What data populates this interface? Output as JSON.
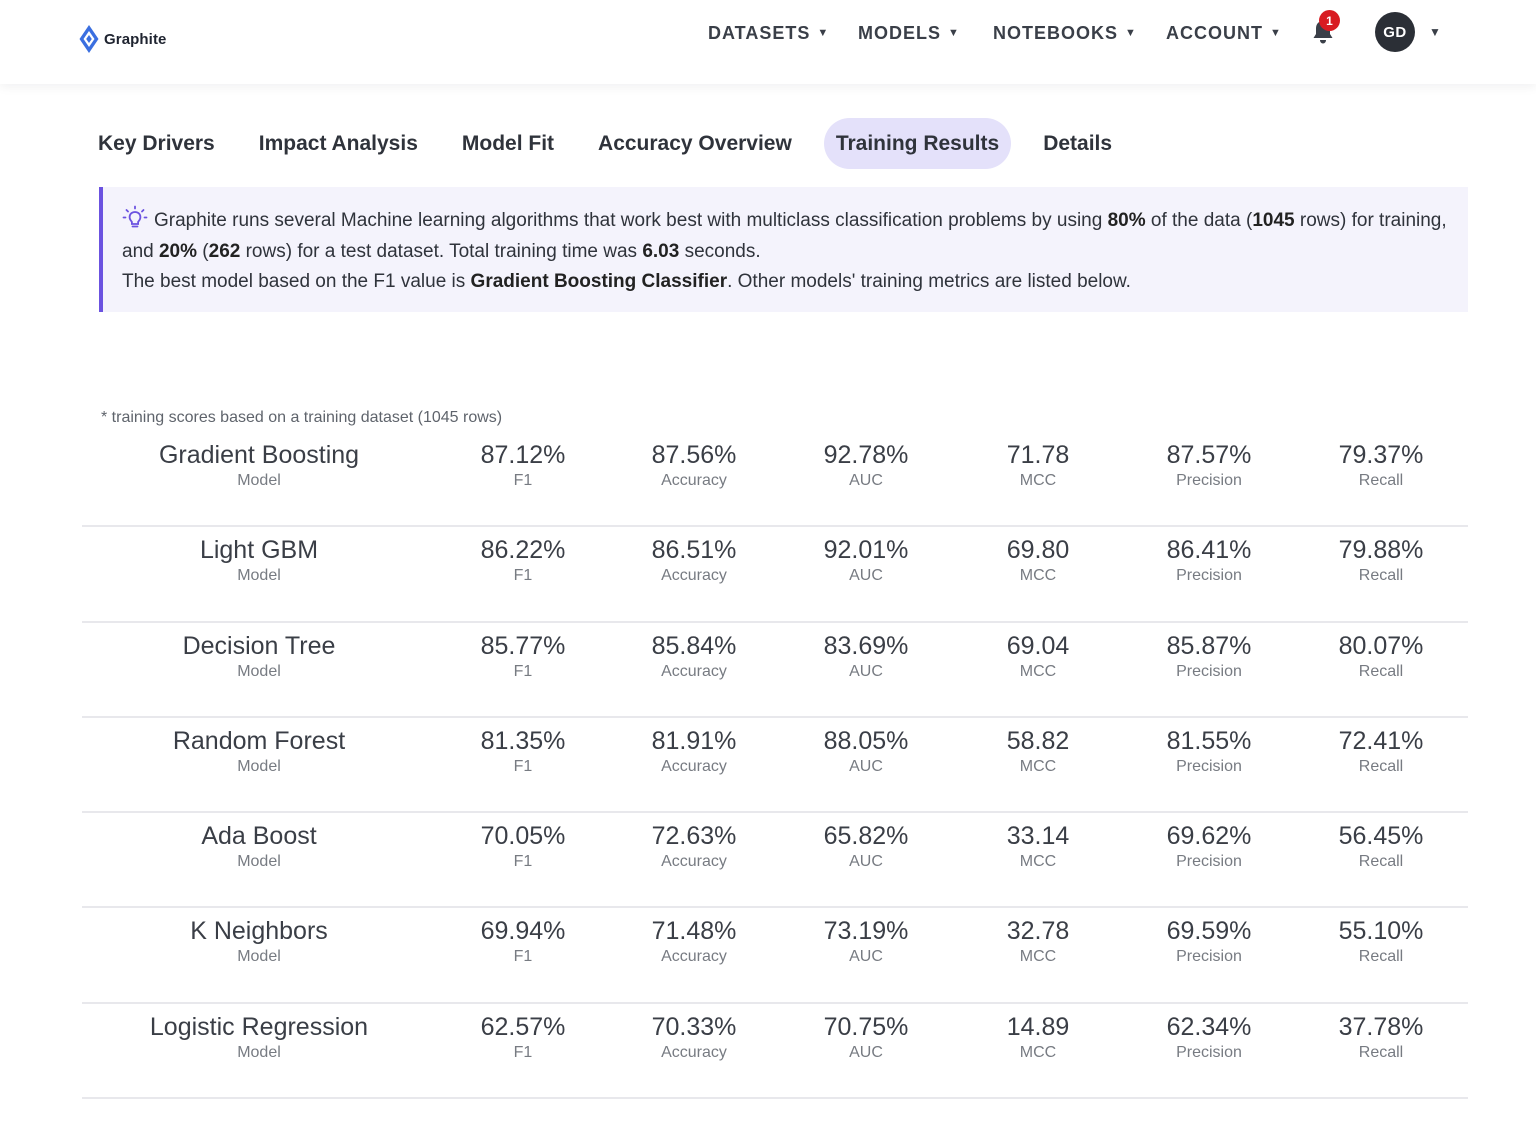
{
  "brand": {
    "name": "Graphite",
    "accent": "#3b6fe0",
    "primary": "#6b52e0"
  },
  "nav": {
    "items": [
      {
        "label": "DATASETS"
      },
      {
        "label": "MODELS"
      },
      {
        "label": "NOTEBOOKS"
      },
      {
        "label": "ACCOUNT"
      }
    ],
    "notifications": {
      "count": "1",
      "icon": "bell-icon"
    },
    "avatar_initials": "GD"
  },
  "tabs": [
    {
      "label": "Key Drivers",
      "active": false
    },
    {
      "label": "Impact Analysis",
      "active": false
    },
    {
      "label": "Model Fit",
      "active": false
    },
    {
      "label": "Accuracy Overview",
      "active": false
    },
    {
      "label": "Training Results",
      "active": true
    },
    {
      "label": "Details",
      "active": false
    }
  ],
  "callout": {
    "icon": "lightbulb-icon",
    "p1": "Graphite runs several Machine learning algorithms that work best with multiclass classification problems by using ",
    "train_pct": "80%",
    "p2": " of the data (",
    "train_rows": "1045",
    "p3": " rows) for training, and ",
    "test_pct": "20%",
    "p4": " (",
    "test_rows": "262",
    "p5": " rows) for a test dataset. Total training time was ",
    "time": "6.03",
    "p6": " seconds.",
    "p7": "The best model based on the F1 value is ",
    "best_model": "Gradient Boosting Classifier",
    "p8": ". Other models' training metrics are listed below."
  },
  "footnote": "* training scores based on a training dataset (1045 rows)",
  "labels": {
    "model": "Model",
    "f1": "F1",
    "accuracy": "Accuracy",
    "auc": "AUC",
    "mcc": "MCC",
    "precision": "Precision",
    "recall": "Recall"
  },
  "results": [
    {
      "model": "Gradient Boosting",
      "f1": "87.12%",
      "accuracy": "87.56%",
      "auc": "92.78%",
      "mcc": "71.78",
      "precision": "87.57%",
      "recall": "79.37%"
    },
    {
      "model": "Light GBM",
      "f1": "86.22%",
      "accuracy": "86.51%",
      "auc": "92.01%",
      "mcc": "69.80",
      "precision": "86.41%",
      "recall": "79.88%"
    },
    {
      "model": "Decision Tree",
      "f1": "85.77%",
      "accuracy": "85.84%",
      "auc": "83.69%",
      "mcc": "69.04",
      "precision": "85.87%",
      "recall": "80.07%"
    },
    {
      "model": "Random Forest",
      "f1": "81.35%",
      "accuracy": "81.91%",
      "auc": "88.05%",
      "mcc": "58.82",
      "precision": "81.55%",
      "recall": "72.41%"
    },
    {
      "model": "Ada Boost",
      "f1": "70.05%",
      "accuracy": "72.63%",
      "auc": "65.82%",
      "mcc": "33.14",
      "precision": "69.62%",
      "recall": "56.45%"
    },
    {
      "model": "K Neighbors",
      "f1": "69.94%",
      "accuracy": "71.48%",
      "auc": "73.19%",
      "mcc": "32.78",
      "precision": "69.59%",
      "recall": "55.10%"
    },
    {
      "model": "Logistic Regression",
      "f1": "62.57%",
      "accuracy": "70.33%",
      "auc": "70.75%",
      "mcc": "14.89",
      "precision": "62.34%",
      "recall": "37.78%"
    }
  ]
}
